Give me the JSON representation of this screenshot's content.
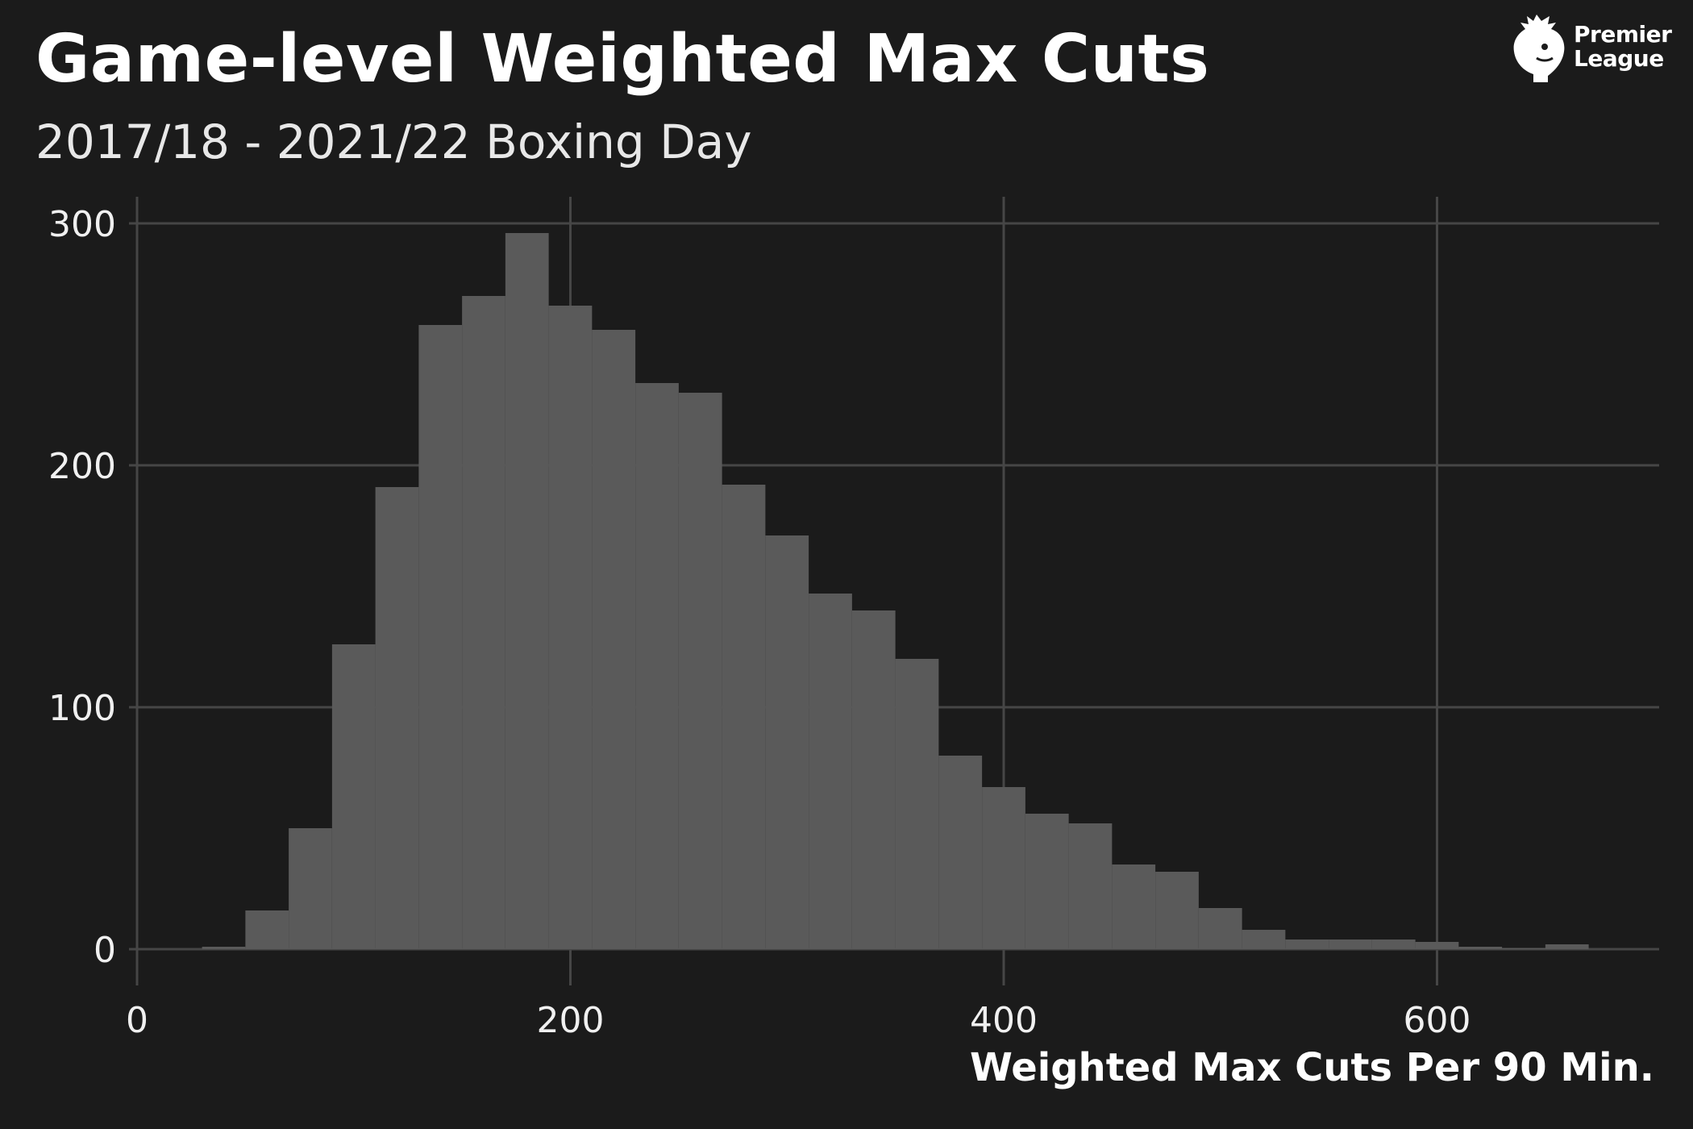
{
  "header": {
    "title": "Game-level Weighted Max Cuts",
    "subtitle": "2017/18 - 2021/22 Boxing Day"
  },
  "logo": {
    "line1": "Premier",
    "line2": "League",
    "icon": "lion-crest-icon"
  },
  "colors": {
    "background": "#1b1b1b",
    "bar": "#5a5a5a",
    "grid": "#464646",
    "text": "#ffffff"
  },
  "chart_data": {
    "type": "bar",
    "subtype": "histogram",
    "title": "Game-level Weighted Max Cuts",
    "subtitle": "2017/18 - 2021/22 Boxing Day",
    "xlabel": "Weighted Max Cuts Per 90 Min.",
    "ylabel": "",
    "xlim": [
      0,
      700
    ],
    "ylim": [
      0,
      300
    ],
    "x_ticks": [
      0,
      200,
      400,
      600
    ],
    "y_ticks": [
      0,
      100,
      200,
      300
    ],
    "grid": true,
    "bin_width": 20,
    "bins": [
      {
        "start": 30,
        "end": 50,
        "count": 1
      },
      {
        "start": 50,
        "end": 70,
        "count": 16
      },
      {
        "start": 70,
        "end": 90,
        "count": 50
      },
      {
        "start": 90,
        "end": 110,
        "count": 126
      },
      {
        "start": 110,
        "end": 130,
        "count": 191
      },
      {
        "start": 130,
        "end": 150,
        "count": 258
      },
      {
        "start": 150,
        "end": 170,
        "count": 270
      },
      {
        "start": 170,
        "end": 190,
        "count": 296
      },
      {
        "start": 190,
        "end": 210,
        "count": 266
      },
      {
        "start": 210,
        "end": 230,
        "count": 256
      },
      {
        "start": 230,
        "end": 250,
        "count": 234
      },
      {
        "start": 250,
        "end": 270,
        "count": 230
      },
      {
        "start": 270,
        "end": 290,
        "count": 192
      },
      {
        "start": 290,
        "end": 310,
        "count": 171
      },
      {
        "start": 310,
        "end": 330,
        "count": 147
      },
      {
        "start": 330,
        "end": 350,
        "count": 140
      },
      {
        "start": 350,
        "end": 370,
        "count": 120
      },
      {
        "start": 370,
        "end": 390,
        "count": 80
      },
      {
        "start": 390,
        "end": 410,
        "count": 67
      },
      {
        "start": 410,
        "end": 430,
        "count": 56
      },
      {
        "start": 430,
        "end": 450,
        "count": 52
      },
      {
        "start": 450,
        "end": 470,
        "count": 35
      },
      {
        "start": 470,
        "end": 490,
        "count": 32
      },
      {
        "start": 490,
        "end": 510,
        "count": 17
      },
      {
        "start": 510,
        "end": 530,
        "count": 8
      },
      {
        "start": 530,
        "end": 550,
        "count": 4
      },
      {
        "start": 550,
        "end": 570,
        "count": 4
      },
      {
        "start": 570,
        "end": 590,
        "count": 4
      },
      {
        "start": 590,
        "end": 610,
        "count": 3
      },
      {
        "start": 610,
        "end": 630,
        "count": 1
      },
      {
        "start": 630,
        "end": 650,
        "count": 0.5
      },
      {
        "start": 650,
        "end": 670,
        "count": 2
      }
    ]
  }
}
